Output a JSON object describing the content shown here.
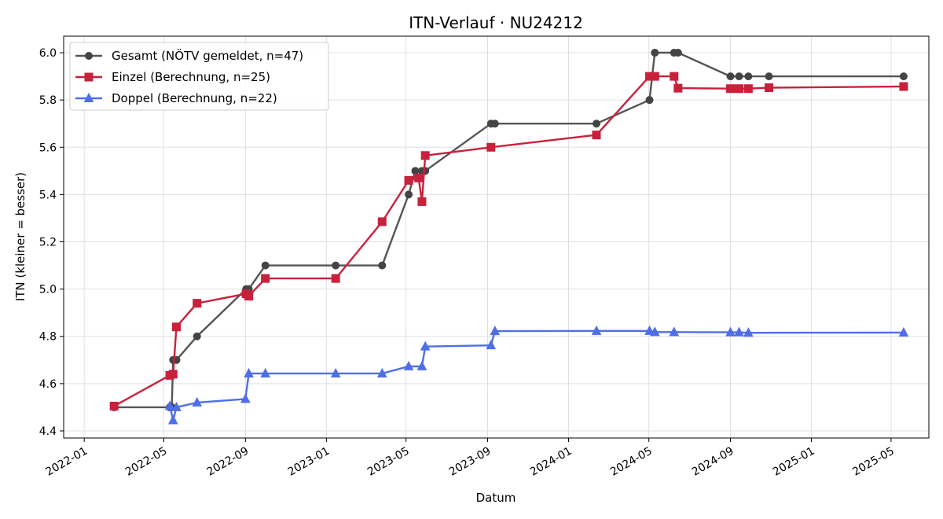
{
  "chart_data": {
    "type": "line",
    "title": "ITN-Verlauf · NU24212",
    "xlabel": "Datum",
    "ylabel": "ITN  (kleiner = besser)",
    "grid": true,
    "legend_position": "top-left",
    "x_ticks": [
      "2022-01",
      "2022-05",
      "2022-09",
      "2023-01",
      "2023-05",
      "2023-09",
      "2024-01",
      "2024-05",
      "2024-09",
      "2025-01",
      "2025-05"
    ],
    "y_ticks": [
      "4.4",
      "4.6",
      "4.8",
      "5.0",
      "5.2",
      "5.4",
      "5.6",
      "5.8",
      "6.0"
    ],
    "xlim": [
      "2021-12-01",
      "2025-06-27"
    ],
    "ylim": [
      4.37,
      6.07
    ],
    "series": [
      {
        "name": "Gesamt (NÖTV gemeldet, n=47)",
        "color": "#555555",
        "marker": "circle",
        "points": [
          [
            "2022-02-15",
            4.5
          ],
          [
            "2022-05-10",
            4.5
          ],
          [
            "2022-05-13",
            4.5
          ],
          [
            "2022-05-15",
            4.7
          ],
          [
            "2022-05-20",
            4.7
          ],
          [
            "2022-06-20",
            4.8
          ],
          [
            "2022-09-02",
            5.0
          ],
          [
            "2022-09-06",
            5.0
          ],
          [
            "2022-10-01",
            5.1
          ],
          [
            "2023-01-15",
            5.1
          ],
          [
            "2023-03-26",
            5.1
          ],
          [
            "2023-05-05",
            5.4
          ],
          [
            "2023-05-15",
            5.5
          ],
          [
            "2023-05-25",
            5.5
          ],
          [
            "2023-05-30",
            5.5
          ],
          [
            "2023-09-06",
            5.7
          ],
          [
            "2023-09-12",
            5.7
          ],
          [
            "2024-02-12",
            5.7
          ],
          [
            "2024-05-02",
            5.8
          ],
          [
            "2024-05-10",
            6.0
          ],
          [
            "2024-06-08",
            6.0
          ],
          [
            "2024-06-14",
            6.0
          ],
          [
            "2024-09-01",
            5.9
          ],
          [
            "2024-09-14",
            5.9
          ],
          [
            "2024-09-28",
            5.9
          ],
          [
            "2024-10-29",
            5.9
          ],
          [
            "2025-05-20",
            5.9
          ]
        ]
      },
      {
        "name": "Einzel (Berechnung, n=25)",
        "color": "#c8213c",
        "marker": "square",
        "points": [
          [
            "2022-02-15",
            4.505
          ],
          [
            "2022-05-10",
            4.635
          ],
          [
            "2022-05-15",
            4.64
          ],
          [
            "2022-05-20",
            4.84
          ],
          [
            "2022-06-20",
            4.94
          ],
          [
            "2022-09-02",
            4.98
          ],
          [
            "2022-09-06",
            4.97
          ],
          [
            "2022-10-01",
            5.045
          ],
          [
            "2023-01-15",
            5.045
          ],
          [
            "2023-03-26",
            5.285
          ],
          [
            "2023-05-05",
            5.46
          ],
          [
            "2023-05-20",
            5.47
          ],
          [
            "2023-05-25",
            5.37
          ],
          [
            "2023-05-30",
            5.565
          ],
          [
            "2023-09-06",
            5.6
          ],
          [
            "2024-02-12",
            5.652
          ],
          [
            "2024-05-02",
            5.9
          ],
          [
            "2024-05-10",
            5.9
          ],
          [
            "2024-06-08",
            5.9
          ],
          [
            "2024-06-14",
            5.85
          ],
          [
            "2024-09-01",
            5.848
          ],
          [
            "2024-09-14",
            5.848
          ],
          [
            "2024-09-28",
            5.848
          ],
          [
            "2024-10-29",
            5.852
          ],
          [
            "2025-05-20",
            5.857
          ]
        ]
      },
      {
        "name": "Doppel (Berechnung, n=22)",
        "color": "#4f6fe8",
        "marker": "triangle",
        "points": [
          [
            "2022-05-10",
            4.505
          ],
          [
            "2022-05-15",
            4.445
          ],
          [
            "2022-05-20",
            4.5
          ],
          [
            "2022-06-20",
            4.52
          ],
          [
            "2022-09-01",
            4.535
          ],
          [
            "2022-09-06",
            4.643
          ],
          [
            "2022-10-01",
            4.643
          ],
          [
            "2023-01-15",
            4.643
          ],
          [
            "2023-03-26",
            4.643
          ],
          [
            "2023-05-05",
            4.673
          ],
          [
            "2023-05-25",
            4.673
          ],
          [
            "2023-05-30",
            4.757
          ],
          [
            "2023-09-06",
            4.762
          ],
          [
            "2023-09-12",
            4.822
          ],
          [
            "2024-02-12",
            4.823
          ],
          [
            "2024-05-02",
            4.823
          ],
          [
            "2024-05-10",
            4.818
          ],
          [
            "2024-06-08",
            4.818
          ],
          [
            "2024-09-01",
            4.817
          ],
          [
            "2024-09-14",
            4.817
          ],
          [
            "2024-09-28",
            4.815
          ],
          [
            "2025-05-20",
            4.816
          ]
        ]
      }
    ]
  }
}
